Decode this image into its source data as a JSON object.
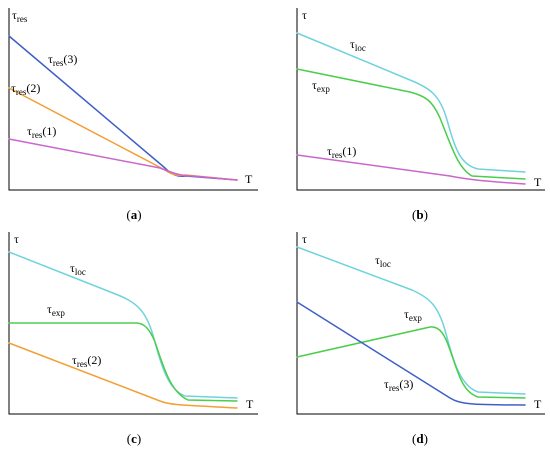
{
  "colors": {
    "cyan": "#6fd3dc",
    "green": "#4ccd4c",
    "blue": "#3f5fc8",
    "orange": "#f1a035",
    "magenta": "#cc66cc",
    "axis": "#000000"
  },
  "panels": [
    {
      "caption_pre": "(",
      "caption_letter": "a",
      "caption_post": ")",
      "ylabel_base": "τ",
      "ylabel_sub": "res",
      "xlabel": "T",
      "curves": [
        {
          "base": "τ",
          "sub": "res",
          "suffix": "(3)"
        },
        {
          "base": "τ",
          "sub": "res",
          "suffix": "(2)"
        },
        {
          "base": "τ",
          "sub": "res",
          "suffix": "(1)"
        }
      ]
    },
    {
      "caption_pre": "(",
      "caption_letter": "b",
      "caption_post": ")",
      "ylabel_base": "τ",
      "ylabel_sub": "",
      "xlabel": "T",
      "curves": [
        {
          "base": "τ",
          "sub": "loc",
          "suffix": ""
        },
        {
          "base": "τ",
          "sub": "exp",
          "suffix": ""
        },
        {
          "base": "τ",
          "sub": "res",
          "suffix": "(1)"
        }
      ]
    },
    {
      "caption_pre": "(",
      "caption_letter": "c",
      "caption_post": ")",
      "ylabel_base": "τ",
      "ylabel_sub": "",
      "xlabel": "T",
      "curves": [
        {
          "base": "τ",
          "sub": "loc",
          "suffix": ""
        },
        {
          "base": "τ",
          "sub": "exp",
          "suffix": ""
        },
        {
          "base": "τ",
          "sub": "res",
          "suffix": "(2)"
        }
      ]
    },
    {
      "caption_pre": "(",
      "caption_letter": "d",
      "caption_post": ")",
      "ylabel_base": "τ",
      "ylabel_sub": "",
      "xlabel": "T",
      "curves": [
        {
          "base": "τ",
          "sub": "loc",
          "suffix": ""
        },
        {
          "base": "τ",
          "sub": "exp",
          "suffix": ""
        },
        {
          "base": "τ",
          "sub": "res",
          "suffix": "(3)"
        }
      ]
    }
  ]
}
